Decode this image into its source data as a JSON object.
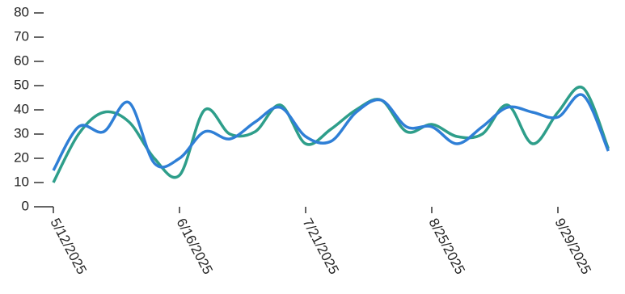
{
  "chart_data": {
    "type": "line",
    "x": [
      "5/12/2025",
      "5/19/2025",
      "5/26/2025",
      "6/2/2025",
      "6/9/2025",
      "6/16/2025",
      "6/23/2025",
      "6/30/2025",
      "7/7/2025",
      "7/14/2025",
      "7/21/2025",
      "7/28/2025",
      "8/4/2025",
      "8/11/2025",
      "8/18/2025",
      "8/25/2025",
      "9/1/2025",
      "9/8/2025",
      "9/15/2025",
      "9/22/2025",
      "9/29/2025",
      "10/6/2025",
      "10/13/2025"
    ],
    "series": [
      {
        "color": "#2e9e8a",
        "values": [
          10,
          30,
          39,
          35,
          20,
          13,
          40,
          30,
          31,
          42,
          26,
          32,
          40,
          44,
          31,
          34,
          29,
          30,
          42,
          26,
          39,
          49,
          24
        ]
      },
      {
        "color": "#2f7fd6",
        "values": [
          15,
          33,
          31,
          43,
          18,
          20,
          31,
          28,
          35,
          41,
          29,
          27,
          39,
          44,
          33,
          33,
          26,
          33,
          41,
          39,
          37,
          46,
          23
        ]
      }
    ],
    "ylim": [
      0,
      80
    ],
    "yticks": [
      0,
      10,
      20,
      30,
      40,
      50,
      60,
      70,
      80
    ],
    "xticks": [
      "5/12/2025",
      "6/16/2025",
      "7/21/2025",
      "8/25/2025",
      "9/29/2025"
    ]
  }
}
